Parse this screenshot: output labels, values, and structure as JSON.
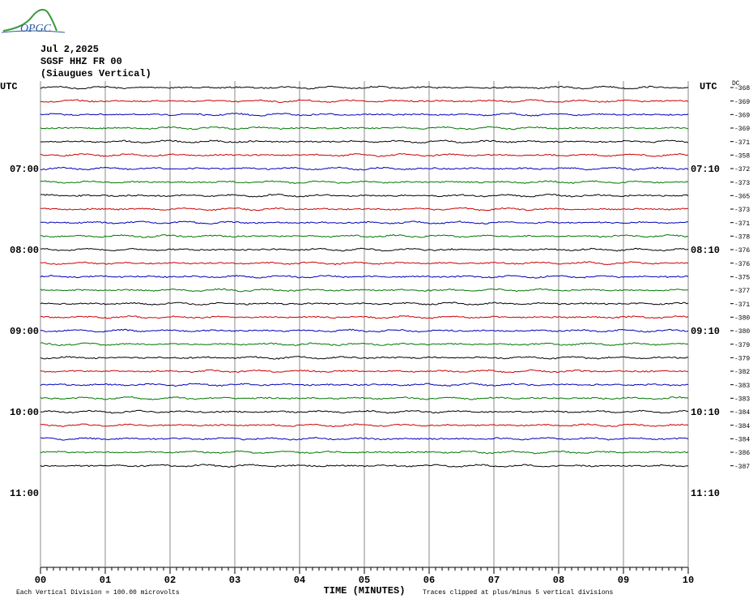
{
  "chart_data": {
    "type": "helicorder",
    "logo": "OPGC",
    "date": "Jul 2,2025",
    "station": "SGSF HHZ FR 00",
    "station_name": "(Siaugues Vertical)",
    "time_zone_left": "UTC",
    "time_zone_right": "UTC",
    "dc_label": "DC",
    "left_labels": [
      "07:00",
      "08:00",
      "09:00",
      "10:00",
      "11:00"
    ],
    "right_labels": [
      "07:10",
      "08:10",
      "09:10",
      "10:10",
      "11:10"
    ],
    "xlabel": "TIME (MINUTES)",
    "xlim": [
      0,
      10
    ],
    "xticks": [
      {
        "value": 0,
        "label": "00"
      },
      {
        "value": 1,
        "label": "01"
      },
      {
        "value": 2,
        "label": "02"
      },
      {
        "value": 3,
        "label": "03"
      },
      {
        "value": 4,
        "label": "04"
      },
      {
        "value": 5,
        "label": "05"
      },
      {
        "value": 6,
        "label": "06"
      },
      {
        "value": 7,
        "label": "07"
      },
      {
        "value": 8,
        "label": "08"
      },
      {
        "value": 9,
        "label": "09"
      },
      {
        "value": 10,
        "label": "10"
      }
    ],
    "trace_colors": [
      "#000000",
      "#cc0000",
      "#0000bb",
      "#007700"
    ],
    "dc_values": [
      -368,
      -369,
      -369,
      -369,
      -371,
      -358,
      -372,
      -373,
      -365,
      -373,
      -371,
      -378,
      -376,
      -376,
      -375,
      -377,
      -371,
      -380,
      -380,
      -379,
      -379,
      -382,
      -383,
      -383,
      -384,
      -384,
      -384,
      -386,
      -387
    ],
    "footer_left": "Each Vertical Division =  100.00 microvolts",
    "footer_right": "Traces clipped at plus/minus 5 vertical divisions"
  }
}
